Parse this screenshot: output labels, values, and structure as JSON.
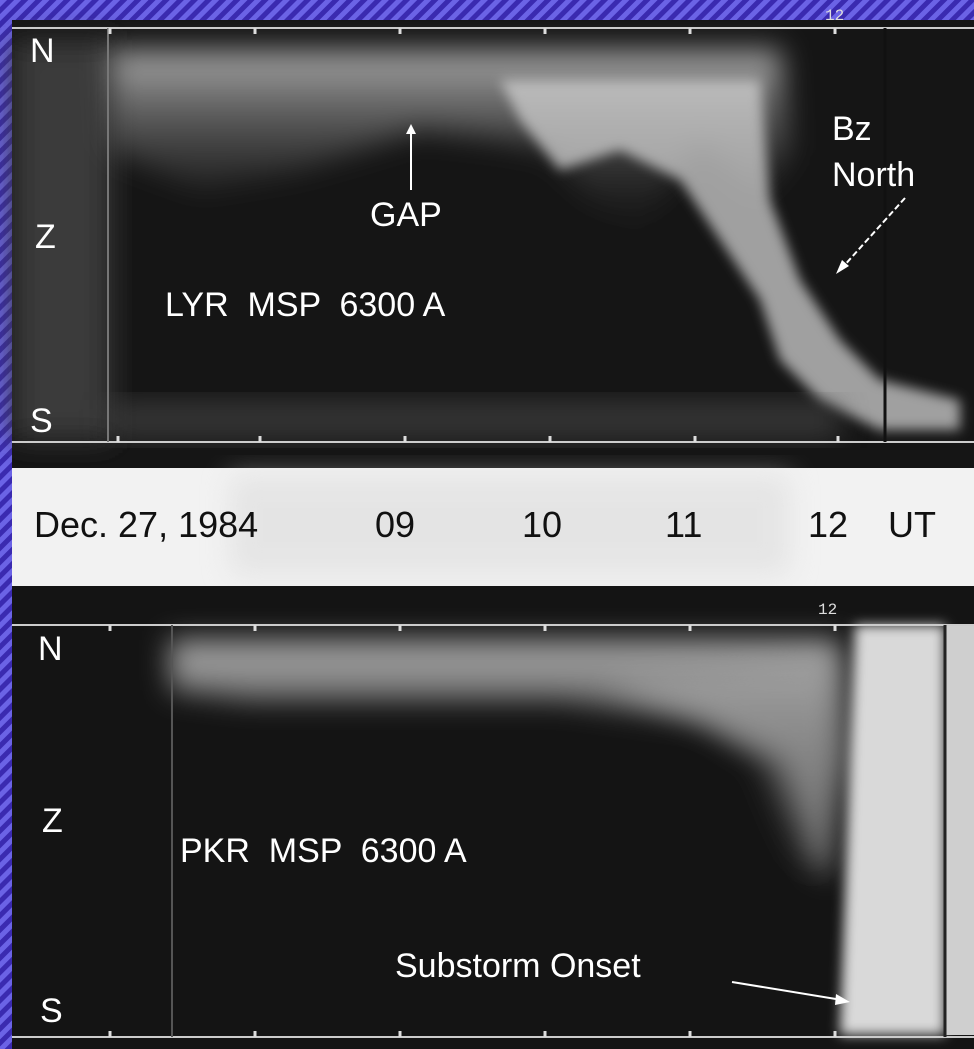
{
  "top_panel": {
    "hour_mark": "12",
    "north": "N",
    "zenith": "Z",
    "south": "S",
    "gap_label": "GAP",
    "bz_label": [
      "Bz",
      "North"
    ],
    "instrument": "LYR  MSP  6300 A"
  },
  "time_strip": {
    "date": "Dec. 27, 1984",
    "hours": [
      "09",
      "10",
      "11",
      "12"
    ],
    "unit": "UT"
  },
  "bottom_panel": {
    "hour_mark": "12",
    "north": "N",
    "zenith": "Z",
    "south": "S",
    "instrument": "PKR  MSP  6300 A",
    "onset_label": "Substorm Onset"
  }
}
